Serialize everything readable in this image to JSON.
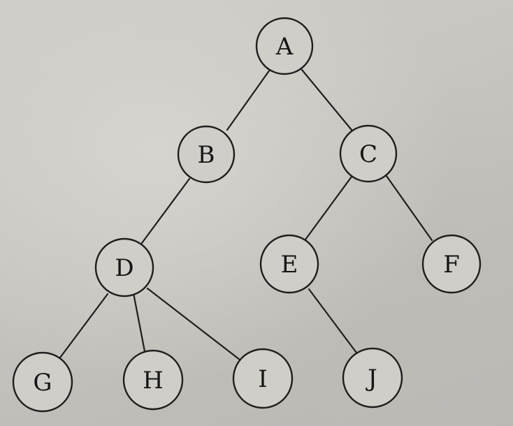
{
  "tree": {
    "nodes": [
      {
        "id": "A",
        "label": "A"
      },
      {
        "id": "B",
        "label": "B"
      },
      {
        "id": "C",
        "label": "C"
      },
      {
        "id": "D",
        "label": "D"
      },
      {
        "id": "E",
        "label": "E"
      },
      {
        "id": "F",
        "label": "F"
      },
      {
        "id": "G",
        "label": "G"
      },
      {
        "id": "H",
        "label": "H"
      },
      {
        "id": "I",
        "label": "I"
      },
      {
        "id": "J",
        "label": "J"
      }
    ],
    "edges": [
      {
        "from": "A",
        "to": "B"
      },
      {
        "from": "A",
        "to": "C"
      },
      {
        "from": "B",
        "to": "D"
      },
      {
        "from": "C",
        "to": "E"
      },
      {
        "from": "C",
        "to": "F"
      },
      {
        "from": "D",
        "to": "G"
      },
      {
        "from": "D",
        "to": "H"
      },
      {
        "from": "D",
        "to": "I"
      },
      {
        "from": "E",
        "to": "J"
      }
    ]
  }
}
